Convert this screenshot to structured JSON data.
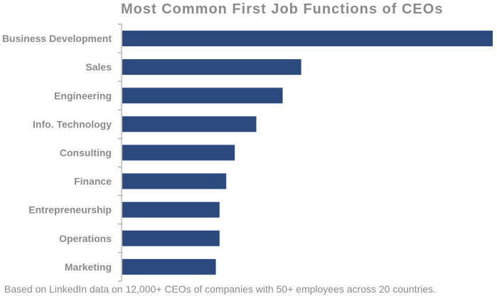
{
  "chart_data": {
    "type": "bar",
    "orientation": "horizontal",
    "title": "Most Common First Job Functions of CEOs",
    "footnote": "Based on LinkedIn data on 12,000+ CEOs of companies with 50+ employees across 20 countries.",
    "categories": [
      "Business Development",
      "Sales",
      "Engineering",
      "Info. Technology",
      "Consulting",
      "Finance",
      "Entrepreneurship",
      "Operations",
      "Marketing"
    ],
    "values": [
      100,
      48.4,
      43.4,
      36.3,
      30.5,
      28.2,
      26.4,
      26.4,
      25.4
    ],
    "xlim": [
      0,
      100
    ],
    "grid": false,
    "legend": "none",
    "bar_color": "#2d4a7f",
    "axis_color": "#9a9a9a",
    "text_color": "#8a8a8a"
  }
}
